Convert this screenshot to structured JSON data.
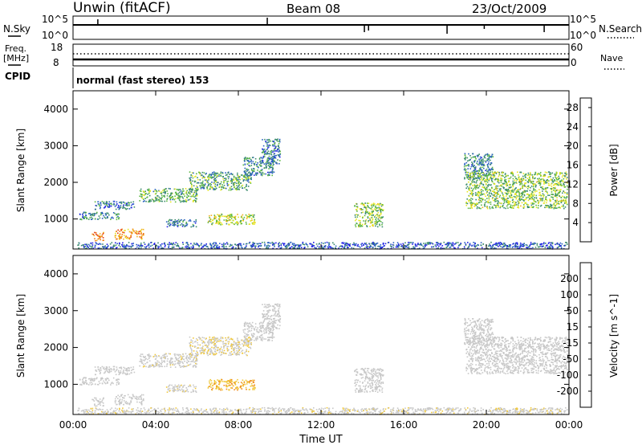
{
  "header": {
    "station": "Unwin (fitACF)",
    "beam": "Beam 08",
    "date": "23/Oct/2009"
  },
  "strip": {
    "nsky_label": "N.Sky",
    "nsky_ticks": [
      "10^5",
      "10^0"
    ],
    "nsearch_label": "N.Search",
    "nsearch_ticks": [
      "10^5",
      "10^0"
    ],
    "freq_label": "Freq.",
    "freq_unit": "[MHz]",
    "freq_ticks": [
      "18",
      "8"
    ],
    "nave_label": "Nave",
    "nave_ticks": [
      "60",
      "0"
    ],
    "cpid_label": "CPID",
    "cpid_text": "normal (fast stereo) 153"
  },
  "chart_data": [
    {
      "type": "heatmap",
      "title": "",
      "xlabel": "Time UT",
      "ylabel": "Slant Range [km]",
      "x_ticks": [
        "00:00",
        "04:00",
        "08:00",
        "12:00",
        "16:00",
        "20:00",
        "00:00"
      ],
      "xlim_hours": [
        0,
        24
      ],
      "y_ticks": [
        1000,
        2000,
        3000,
        4000
      ],
      "ylim": [
        180,
        4500
      ],
      "colorbar": {
        "label": "Power [dB]",
        "ticks": [
          "4",
          "8",
          "12",
          "16",
          "20",
          "24",
          "28"
        ],
        "range": [
          0,
          30
        ],
        "colors": [
          "#1f1fe6",
          "#2860c0",
          "#3c8c6e",
          "#5db843",
          "#e6e61e",
          "#f0b41e",
          "#f07814",
          "#e63c14",
          "#e61414"
        ]
      },
      "echo_regions": [
        {
          "t0": 0.9,
          "t1": 1.5,
          "r0": 420,
          "r1": 650,
          "value": 22
        },
        {
          "t0": 2.0,
          "t1": 3.4,
          "r0": 460,
          "r1": 740,
          "value": 20
        },
        {
          "t0": 0.3,
          "t1": 2.2,
          "r0": 1000,
          "r1": 1200,
          "value": 8
        },
        {
          "t0": 1.0,
          "t1": 3.0,
          "r0": 1280,
          "r1": 1500,
          "value": 6
        },
        {
          "t0": 3.2,
          "t1": 6.0,
          "r0": 1480,
          "r1": 1850,
          "value": 10
        },
        {
          "t0": 5.6,
          "t1": 8.6,
          "r0": 1800,
          "r1": 2300,
          "value": 10
        },
        {
          "t0": 8.2,
          "t1": 9.7,
          "r0": 2200,
          "r1": 2700,
          "value": 8
        },
        {
          "t0": 9.1,
          "t1": 10.0,
          "r0": 2500,
          "r1": 3200,
          "value": 7
        },
        {
          "t0": 4.5,
          "t1": 6.0,
          "r0": 800,
          "r1": 1000,
          "value": 6
        },
        {
          "t0": 6.5,
          "t1": 8.8,
          "r0": 860,
          "r1": 1150,
          "value": 14
        },
        {
          "t0": 13.6,
          "t1": 15.0,
          "r0": 800,
          "r1": 1450,
          "value": 12
        },
        {
          "t0": 18.9,
          "t1": 20.3,
          "r0": 2100,
          "r1": 2800,
          "value": 8
        },
        {
          "t0": 19.0,
          "t1": 23.9,
          "r0": 1300,
          "r1": 2300,
          "value": 12
        },
        {
          "t0": 0.2,
          "t1": 23.9,
          "r0": 200,
          "r1": 380,
          "value": 5
        }
      ]
    },
    {
      "type": "heatmap",
      "title": "",
      "xlabel": "Time UT",
      "ylabel": "Slant Range [km]",
      "x_ticks": [
        "00:00",
        "04:00",
        "08:00",
        "12:00",
        "16:00",
        "20:00",
        "00:00"
      ],
      "xlim_hours": [
        0,
        24
      ],
      "y_ticks": [
        1000,
        2000,
        3000,
        4000
      ],
      "ylim": [
        180,
        4500
      ],
      "colorbar": {
        "label": "Velocity [m s^-1]",
        "ticks": [
          "200",
          "100",
          "50",
          "15",
          "-15",
          "-50",
          "-100",
          "-200"
        ],
        "range": [
          -250,
          250
        ],
        "colors": [
          "#e61414",
          "#f0501e",
          "#f08c1e",
          "#f0c83c",
          "#c8c8c8",
          "#c8c8c8",
          "#6ec83c",
          "#3c8c50",
          "#285ab4",
          "#1e1ec8"
        ]
      },
      "echo_regions": [
        {
          "t0": 0.9,
          "t1": 1.5,
          "r0": 420,
          "r1": 650,
          "value": 0
        },
        {
          "t0": 2.0,
          "t1": 3.4,
          "r0": 460,
          "r1": 740,
          "value": 0
        },
        {
          "t0": 0.3,
          "t1": 2.2,
          "r0": 1000,
          "r1": 1200,
          "value": 0
        },
        {
          "t0": 1.0,
          "t1": 3.0,
          "r0": 1280,
          "r1": 1500,
          "value": 0
        },
        {
          "t0": 3.2,
          "t1": 6.0,
          "r0": 1480,
          "r1": 1850,
          "value": -30
        },
        {
          "t0": 5.6,
          "t1": 8.6,
          "r0": 1800,
          "r1": 2300,
          "value": -40
        },
        {
          "t0": 8.2,
          "t1": 9.7,
          "r0": 2200,
          "r1": 2700,
          "value": -10
        },
        {
          "t0": 9.1,
          "t1": 10.0,
          "r0": 2500,
          "r1": 3200,
          "value": 0
        },
        {
          "t0": 4.5,
          "t1": 6.0,
          "r0": 800,
          "r1": 1000,
          "value": -40
        },
        {
          "t0": 6.5,
          "t1": 8.8,
          "r0": 860,
          "r1": 1150,
          "value": -90
        },
        {
          "t0": 13.6,
          "t1": 15.0,
          "r0": 800,
          "r1": 1450,
          "value": 0
        },
        {
          "t0": 18.9,
          "t1": 20.3,
          "r0": 2100,
          "r1": 2800,
          "value": 0
        },
        {
          "t0": 19.0,
          "t1": 23.9,
          "r0": 1300,
          "r1": 2300,
          "value": 0
        },
        {
          "t0": 0.2,
          "t1": 23.9,
          "r0": 200,
          "r1": 380,
          "value": -30
        }
      ]
    }
  ]
}
